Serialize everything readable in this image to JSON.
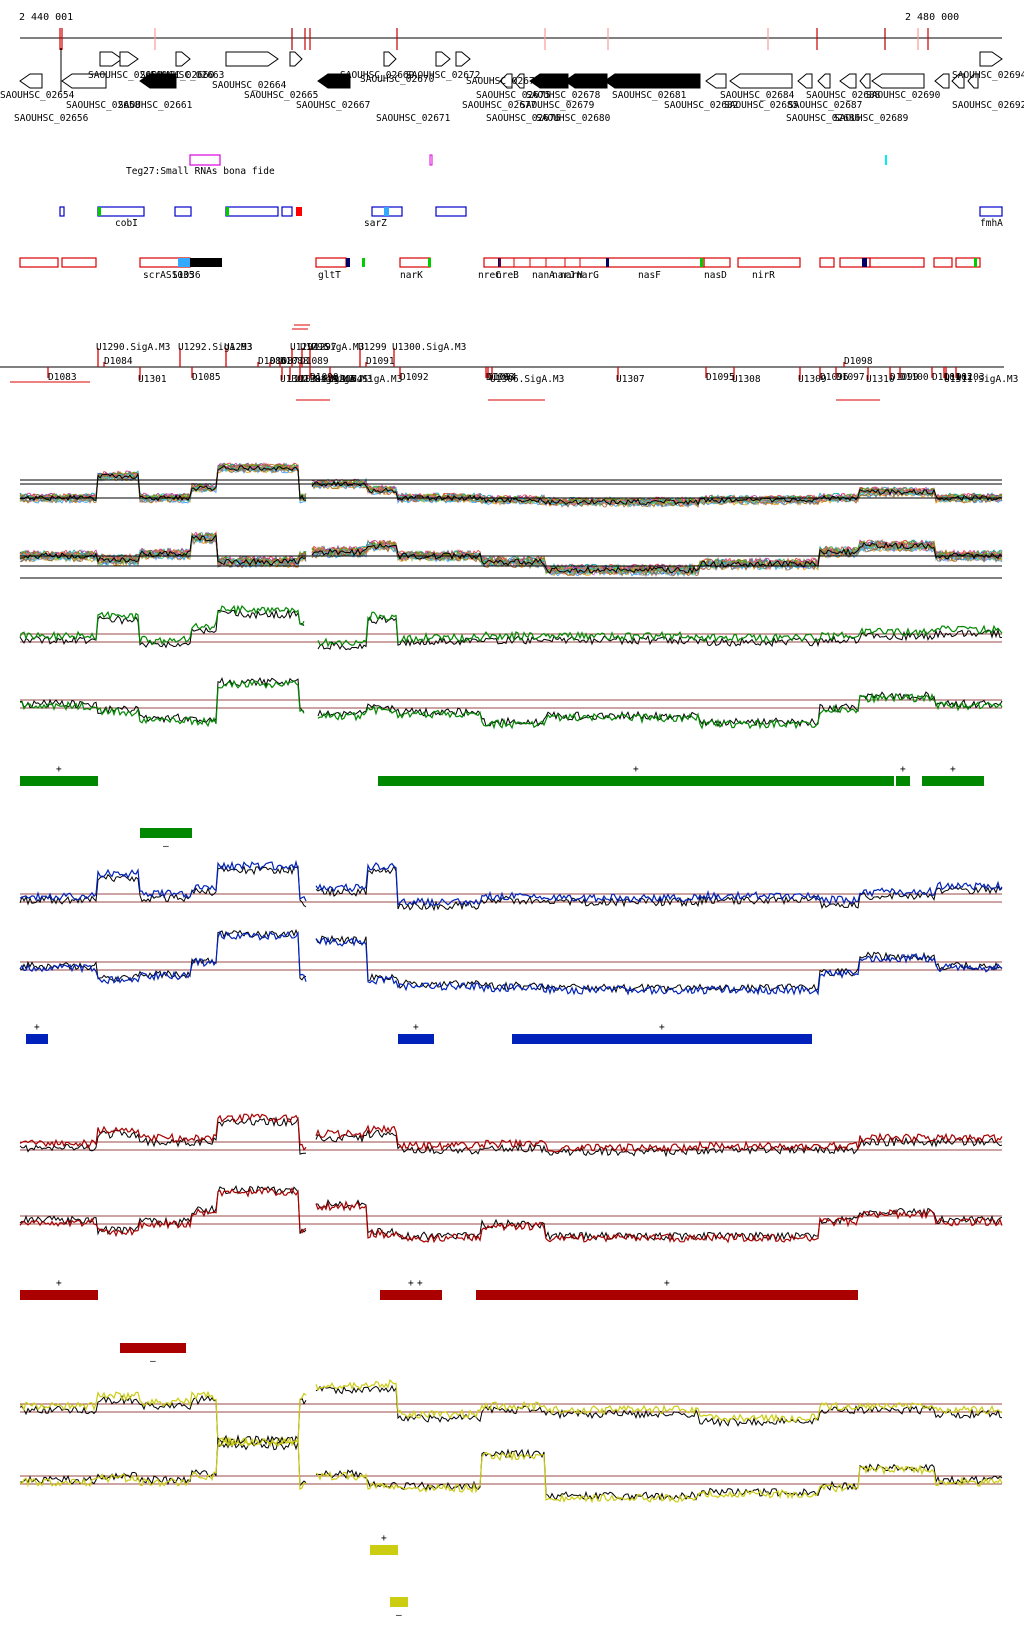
{
  "coordinates": {
    "start": "2 440 001",
    "end": "2 480 000"
  },
  "genes": {
    "forward": [
      {
        "label": "SAOUHSC_02659"
      },
      {
        "label": "SAOUHSC_02660"
      },
      {
        "label": "SAOUHSC_02663"
      },
      {
        "label": "SAOUHSC_02664"
      },
      {
        "label": "SAOUHSC_02669"
      },
      {
        "label": "SAOUHSC_02670"
      },
      {
        "label": "SAOUHSC_02672"
      },
      {
        "label": "SAOUHSC_02694"
      }
    ],
    "reverse": [
      {
        "label": "SAOUHSC_02654"
      },
      {
        "label": "SAOUHSC_02656"
      },
      {
        "label": "SAOUHSC_02658"
      },
      {
        "label": "SAOUHSC_02661"
      },
      {
        "label": "SAOUHSC_02665"
      },
      {
        "label": "SAOUHSC_02667"
      },
      {
        "label": "SAOUHSC_02671"
      },
      {
        "label": "SAOUHSC_02673"
      },
      {
        "label": "SAOUHSC_02675"
      },
      {
        "label": "SAOUHSC_02676"
      },
      {
        "label": "SAOUHSC_02677"
      },
      {
        "label": "SAOUHSC_02678"
      },
      {
        "label": "SAOUHSC_02679"
      },
      {
        "label": "SAOUHSC_02680"
      },
      {
        "label": "SAOUHSC_02681"
      },
      {
        "label": "SAOUHSC_02682"
      },
      {
        "label": "SAOUHSC_02684"
      },
      {
        "label": "SAOUHSC_02685"
      },
      {
        "label": "SAOUHSC_02686"
      },
      {
        "label": "SAOUHSC_02687"
      },
      {
        "label": "SAOUHSC_02688"
      },
      {
        "label": "SAOUHSC_02689"
      },
      {
        "label": "SAOUHSC_02690"
      },
      {
        "label": "SAOUHSC_02692"
      }
    ]
  },
  "small_rna_label": "Teg27:Small RNAs bona fide",
  "regulatory_labels": {
    "blue": [
      "cobI",
      "sarZ",
      "fmhA"
    ],
    "red": [
      "scrAS1035",
      "S1036",
      "gltT",
      "narK",
      "nreC",
      "nreB",
      "nanA",
      "narJ",
      "narH",
      "narG",
      "nasF",
      "nasD",
      "nirR"
    ]
  },
  "upshifts": [
    "U1290.SigA.M3",
    "U1292.SigA.M3",
    "U1293",
    "U1294.SigA.M3",
    "U1296",
    "U1297",
    "U1299",
    "U1300.SigA.M3",
    "U1301",
    "U1302.SigA.M3",
    "U1303.SigA.M4",
    "U1304.SigA.M3",
    "U1305.SigA.M3",
    "U1306.SigA.M3",
    "U1307",
    "U1308",
    "U1309",
    "U1310",
    "U1311.SigA.M3"
  ],
  "downshifts": [
    "D1083",
    "D1084",
    "D1085",
    "D1086",
    "D1087",
    "D1088",
    "D1089",
    "D1090",
    "D1091",
    "D1092",
    "D1093",
    "D1094",
    "D1095",
    "D1096",
    "D1097",
    "D1098",
    "D1099",
    "D1100",
    "D1101",
    "D1102",
    "D1103"
  ],
  "colors": {
    "green": "#008800",
    "blue": "#0022bb",
    "red": "#aa0000",
    "yellow": "#cccc11",
    "black": "#000000",
    "threshold": "#9a4a4a"
  },
  "condition_tracks": [
    {
      "color": "green",
      "plus_bars": 4,
      "minus_bars": 1
    },
    {
      "color": "blue",
      "plus_bars": 3,
      "minus_bars": 0
    },
    {
      "color": "red",
      "plus_bars": 4,
      "minus_bars": 1
    },
    {
      "color": "yellow",
      "plus_bars": 1,
      "minus_bars": 1
    }
  ],
  "strand_marks": {
    "plus": "+",
    "minus": "–"
  }
}
